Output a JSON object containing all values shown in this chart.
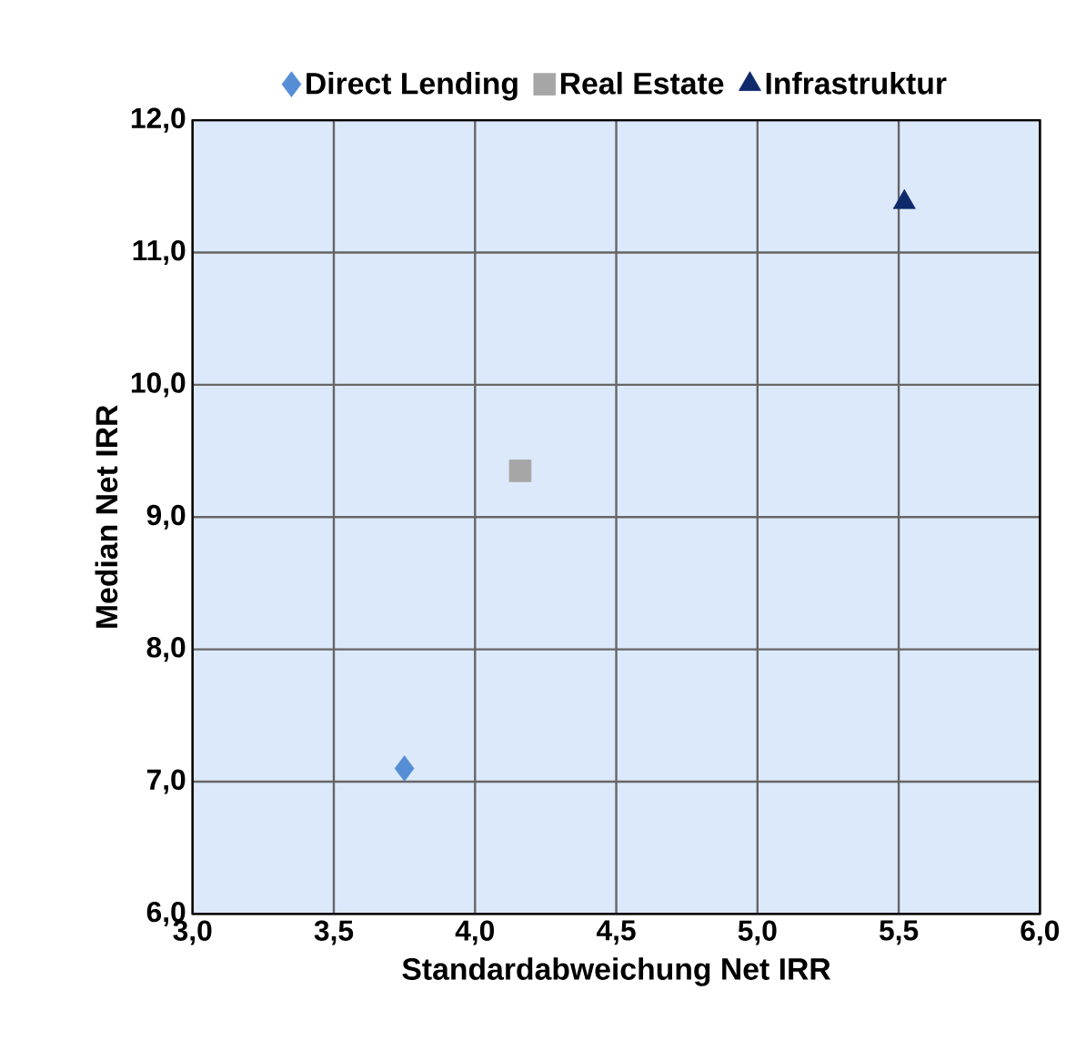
{
  "chart_data": {
    "type": "scatter",
    "xlabel": "Standardabweichung Net IRR",
    "ylabel": "Median Net IRR",
    "series": [
      {
        "name": "Direct Lending",
        "color": "#558ed5",
        "marker": "diamond",
        "x": [
          3.75
        ],
        "values": [
          7.1
        ]
      },
      {
        "name": "Real Estate",
        "color": "#a6a6a6",
        "marker": "square",
        "x": [
          4.16
        ],
        "values": [
          9.35
        ]
      },
      {
        "name": "Infrastruktur",
        "color": "#0f2a6b",
        "marker": "triangle",
        "x": [
          5.52
        ],
        "values": [
          11.38
        ]
      }
    ],
    "xlim": [
      3.0,
      6.0
    ],
    "ylim": [
      6.0,
      12.0
    ],
    "xticks": [
      {
        "value": 3.0,
        "label": "3,0"
      },
      {
        "value": 3.5,
        "label": "3,5"
      },
      {
        "value": 4.0,
        "label": "4,0"
      },
      {
        "value": 4.5,
        "label": "4,5"
      },
      {
        "value": 5.0,
        "label": "5,0"
      },
      {
        "value": 5.5,
        "label": "5,5"
      },
      {
        "value": 6.0,
        "label": "6,0"
      }
    ],
    "yticks": [
      {
        "value": 6.0,
        "label": "6,0"
      },
      {
        "value": 7.0,
        "label": "7,0"
      },
      {
        "value": 8.0,
        "label": "8,0"
      },
      {
        "value": 9.0,
        "label": "9,0"
      },
      {
        "value": 10.0,
        "label": "10,0"
      },
      {
        "value": 11.0,
        "label": "11,0"
      },
      {
        "value": 12.0,
        "label": "12,0"
      }
    ],
    "grid": true,
    "legend": "top"
  }
}
